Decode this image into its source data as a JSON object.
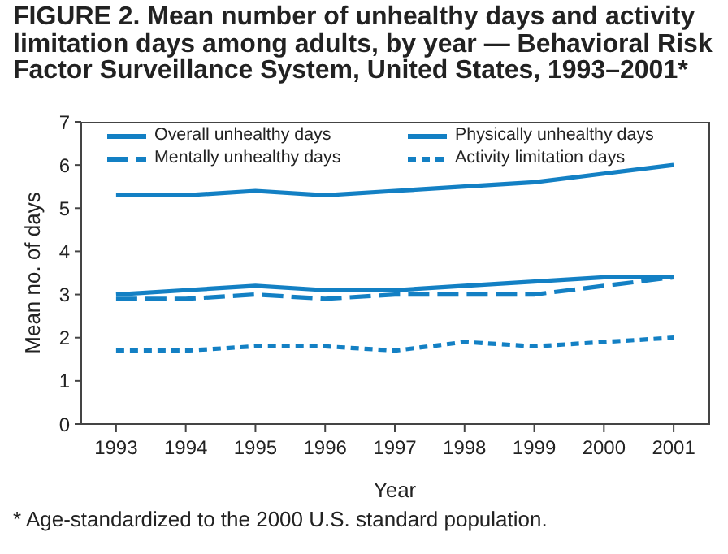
{
  "chart_data": {
    "type": "line",
    "title": "FIGURE 2. Mean number of unhealthy days and activity limitation days among adults, by year — Behavioral Risk Factor Surveillance System, United States, 1993–2001*",
    "xlabel": "Year",
    "ylabel": "Mean no. of days",
    "annotations": [
      "* Age-standardized to the 2000 U.S. standard population."
    ],
    "categories": [
      "1993",
      "1994",
      "1995",
      "1996",
      "1997",
      "1998",
      "1999",
      "2000",
      "2001"
    ],
    "series": [
      {
        "name": "Overall unhealthy days",
        "color": "#1380c4",
        "line_style": "solid",
        "values": [
          5.3,
          5.3,
          5.4,
          5.3,
          5.4,
          5.5,
          5.6,
          5.8,
          6.0
        ]
      },
      {
        "name": "Physically unhealthy days",
        "color": "#1380c4",
        "line_style": "solid",
        "values": [
          3.0,
          3.1,
          3.2,
          3.1,
          3.1,
          3.2,
          3.3,
          3.4,
          3.4
        ]
      },
      {
        "name": "Mentally unhealthy days",
        "color": "#1380c4",
        "line_style": "dashed",
        "values": [
          2.9,
          2.9,
          3.0,
          2.9,
          3.0,
          3.0,
          3.0,
          3.2,
          3.4
        ]
      },
      {
        "name": "Activity limitation days",
        "color": "#1380c4",
        "line_style": "dotted",
        "values": [
          1.7,
          1.7,
          1.8,
          1.8,
          1.7,
          1.9,
          1.8,
          1.9,
          2.0
        ]
      }
    ],
    "ylim": [
      0,
      7
    ],
    "yticks": [
      0,
      1,
      2,
      3,
      4,
      5,
      6,
      7
    ],
    "legend": "top"
  }
}
